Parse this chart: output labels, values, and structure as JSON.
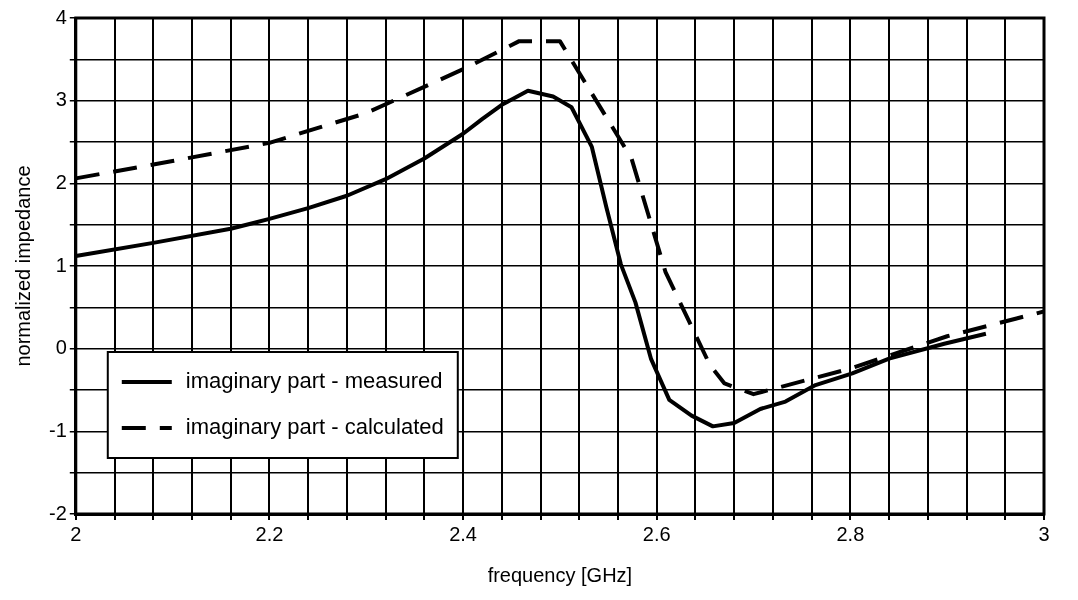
{
  "chart_data": {
    "type": "line",
    "xlabel": "frequency [GHz]",
    "ylabel": "normalized impedance",
    "xlim": [
      2,
      3
    ],
    "ylim": [
      -2,
      4
    ],
    "xticks": [
      2,
      {
        "value": 2.04,
        "label": null
      },
      {
        "value": 2.08,
        "label": null
      },
      {
        "value": 2.12,
        "label": null
      },
      {
        "value": 2.16,
        "label": null
      },
      2.2,
      {
        "value": 2.24,
        "label": null
      },
      {
        "value": 2.28,
        "label": null
      },
      {
        "value": 2.32,
        "label": null
      },
      {
        "value": 2.36,
        "label": null
      },
      2.4,
      {
        "value": 2.44,
        "label": null
      },
      {
        "value": 2.48,
        "label": null
      },
      {
        "value": 2.52,
        "label": null
      },
      {
        "value": 2.56,
        "label": null
      },
      2.6,
      {
        "value": 2.64,
        "label": null
      },
      {
        "value": 2.68,
        "label": null
      },
      {
        "value": 2.72,
        "label": null
      },
      {
        "value": 2.76,
        "label": null
      },
      2.8,
      {
        "value": 2.84,
        "label": null
      },
      {
        "value": 2.88,
        "label": null
      },
      {
        "value": 2.92,
        "label": null
      },
      {
        "value": 2.96,
        "label": null
      },
      3
    ],
    "yticks": [
      -2,
      {
        "value": -1.5,
        "label": null
      },
      -1,
      {
        "value": -0.5,
        "label": null
      },
      0,
      {
        "value": 0.5,
        "label": null
      },
      1,
      {
        "value": 1.5,
        "label": null
      },
      2,
      {
        "value": 2.5,
        "label": null
      },
      3,
      {
        "value": 3.5,
        "label": null
      },
      4
    ],
    "grid": true,
    "legend": "bottom left",
    "marker": "none",
    "series": [
      {
        "name": "imaginary part - measured",
        "color": "#000000",
        "line_style": "solid",
        "x": [
          2.0,
          2.08,
          2.16,
          2.2,
          2.24,
          2.28,
          2.32,
          2.36,
          2.4,
          2.42,
          2.44,
          2.467,
          2.493,
          2.512,
          2.533,
          2.548,
          2.563,
          2.578,
          2.594,
          2.613,
          2.636,
          2.658,
          2.68,
          2.707,
          2.733,
          2.764,
          2.802,
          2.84,
          2.897,
          2.94
        ],
        "values": [
          1.12,
          1.28,
          1.45,
          1.57,
          1.7,
          1.85,
          2.05,
          2.3,
          2.6,
          2.78,
          2.95,
          3.12,
          3.05,
          2.92,
          2.44,
          1.71,
          1.02,
          0.56,
          -0.12,
          -0.62,
          -0.81,
          -0.94,
          -0.9,
          -0.73,
          -0.64,
          -0.44,
          -0.3,
          -0.12,
          0.06,
          0.18
        ]
      },
      {
        "name": "imaginary part - calculated",
        "color": "#000000",
        "line_style": "dashed",
        "x": [
          2.0,
          2.1,
          2.2,
          2.3,
          2.4,
          2.458,
          2.5,
          2.574,
          2.609,
          2.655,
          2.67,
          2.7,
          2.8,
          2.9,
          3.0
        ],
        "values": [
          2.06,
          2.27,
          2.49,
          2.85,
          3.38,
          3.72,
          3.72,
          2.3,
          0.93,
          -0.2,
          -0.42,
          -0.55,
          -0.24,
          0.15,
          0.45
        ]
      }
    ]
  }
}
